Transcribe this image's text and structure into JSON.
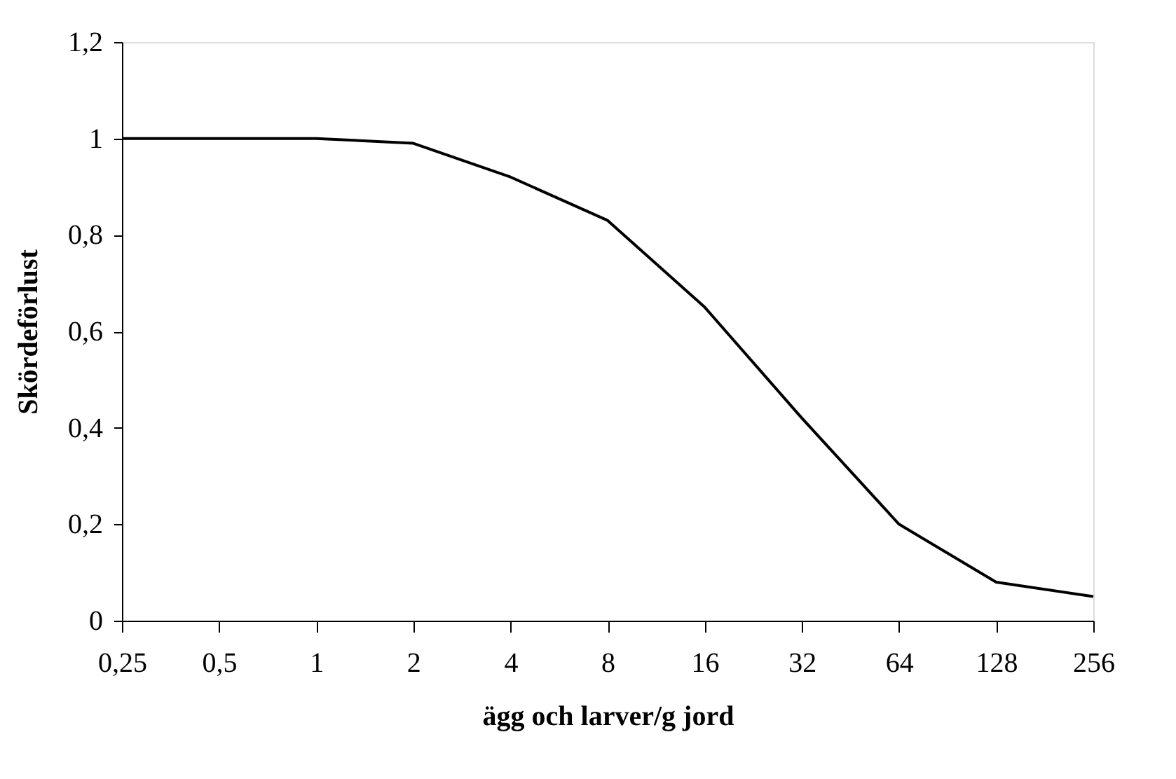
{
  "chart_data": {
    "type": "line",
    "xlabel": "ägg och larver/g jord",
    "ylabel": "Skördeförlust",
    "categories": [
      "0,25",
      "0,5",
      "1",
      "2",
      "4",
      "8",
      "16",
      "32",
      "64",
      "128",
      "256"
    ],
    "series": [
      {
        "color": "#000000",
        "values": [
          1,
          1,
          1,
          0.99,
          0.92,
          0.83,
          0.65,
          0.42,
          0.2,
          0.08,
          0.05
        ]
      }
    ],
    "ylim": [
      0,
      1.2
    ],
    "yticks": [
      0,
      {
        "value": 0.2,
        "label": "0,2"
      },
      {
        "value": 0.4,
        "label": "0,4"
      },
      {
        "value": 0.6,
        "label": "0,6"
      },
      {
        "value": 0.8,
        "label": "0,8"
      },
      1,
      {
        "value": 1.2,
        "label": "1,2"
      }
    ],
    "grid": false,
    "legend": false,
    "marker": "none",
    "line_style": "solid"
  }
}
